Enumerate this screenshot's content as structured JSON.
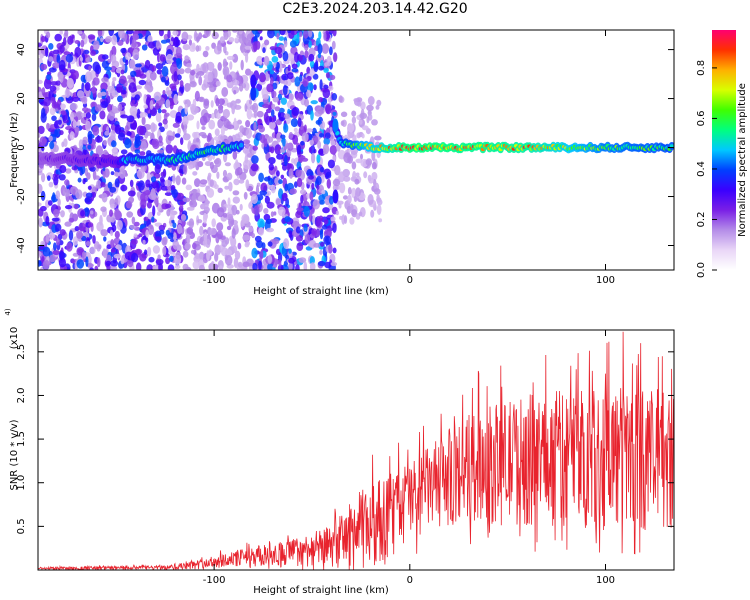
{
  "title": "C2E3.2024.203.14.42.G20",
  "charts": [
    {
      "type": "heatmap",
      "xlabel": "Height of straight line (km)",
      "ylabel": "Frequency (Hz)",
      "xlim": [
        -190,
        135
      ],
      "ylim": [
        -50,
        48
      ],
      "xticks": [
        -100,
        0,
        100
      ],
      "xtick_labels": [
        "-100",
        "0",
        "100"
      ],
      "yticks": [
        -40,
        -20,
        0,
        20,
        40
      ],
      "ytick_labels": [
        "-40",
        "-20",
        "0",
        "20",
        "40"
      ],
      "colorbar": {
        "label": "Normalized spectral amplitude",
        "range": [
          0,
          0.95
        ],
        "ticks": [
          0.0,
          0.2,
          0.4,
          0.6,
          0.8
        ],
        "tick_labels": [
          "0.0",
          "0.2",
          "0.4",
          "0.6",
          "0.8"
        ],
        "colors": [
          "#ffffff",
          "#e9d6f7",
          "#b48ce8",
          "#7a1fe6",
          "#3a00ff",
          "#0040ff",
          "#00c8ff",
          "#00ff80",
          "#40ff00",
          "#d8ff00",
          "#ffb000",
          "#ff3000",
          "#ff0070"
        ]
      },
      "noise_regions": [
        {
          "x": [
            -190,
            -115
          ],
          "y": [
            -50,
            48
          ],
          "level": 0.22
        },
        {
          "x": [
            -115,
            -80
          ],
          "y": [
            -50,
            48
          ],
          "level": 0.08
        },
        {
          "x": [
            -80,
            -38
          ],
          "y": [
            -50,
            48
          ],
          "level": 0.26
        },
        {
          "x": [
            -38,
            -15
          ],
          "y": [
            -30,
            20
          ],
          "level": 0.06
        }
      ],
      "ridge": [
        {
          "x": -190,
          "y": -4,
          "amp": 0.15,
          "width": 6
        },
        {
          "x": -150,
          "y": -6,
          "amp": 0.25,
          "width": 6
        },
        {
          "x": -145,
          "y": -5,
          "amp": 0.45,
          "width": 5
        },
        {
          "x": -120,
          "y": -5,
          "amp": 0.5,
          "width": 5
        },
        {
          "x": -100,
          "y": -1,
          "amp": 0.55,
          "width": 5
        },
        {
          "x": -85,
          "y": 1,
          "amp": 0.45,
          "width": 5
        },
        {
          "x": -80,
          "y": 25,
          "amp": 0.3,
          "width": 8
        },
        {
          "x": -38,
          "y": 8,
          "amp": 0.4,
          "width": 6
        },
        {
          "x": -35,
          "y": 2,
          "amp": 0.5,
          "width": 4
        },
        {
          "x": -20,
          "y": 0,
          "amp": 0.7,
          "width": 4
        },
        {
          "x": 0,
          "y": 0,
          "amp": 0.85,
          "width": 4
        },
        {
          "x": 60,
          "y": 0,
          "amp": 0.8,
          "width": 4
        },
        {
          "x": 100,
          "y": 0,
          "amp": 0.6,
          "width": 4
        },
        {
          "x": 135,
          "y": 0,
          "amp": 0.55,
          "width": 4
        }
      ]
    },
    {
      "type": "line",
      "xlabel": "Height of straight line (km)",
      "ylabel": "SNR (10 * v/v)",
      "multiplier": "(x10",
      "multiplier_exp": "4",
      "xlim": [
        -190,
        135
      ],
      "ylim": [
        0,
        2.75
      ],
      "xticks": [
        -100,
        0,
        100
      ],
      "xtick_labels": [
        "-100",
        "0",
        "100"
      ],
      "yticks": [
        0.5,
        1.0,
        1.5,
        2.0,
        2.5
      ],
      "ytick_labels": [
        "0.5",
        "1.0",
        "1.5",
        "2.0",
        "2.5"
      ],
      "color": "#e8232d",
      "envelope": [
        {
          "x": -190,
          "base": 0.02,
          "amp": 0.02
        },
        {
          "x": -125,
          "base": 0.03,
          "amp": 0.03
        },
        {
          "x": -110,
          "base": 0.06,
          "amp": 0.06
        },
        {
          "x": -90,
          "base": 0.14,
          "amp": 0.12
        },
        {
          "x": -60,
          "base": 0.22,
          "amp": 0.2
        },
        {
          "x": -40,
          "base": 0.3,
          "amp": 0.3
        },
        {
          "x": -25,
          "base": 0.5,
          "amp": 0.6
        },
        {
          "x": -10,
          "base": 0.7,
          "amp": 0.6
        },
        {
          "x": 10,
          "base": 1.0,
          "amp": 0.6
        },
        {
          "x": 30,
          "base": 1.25,
          "amp": 0.8
        },
        {
          "x": 60,
          "base": 1.35,
          "amp": 0.95
        },
        {
          "x": 100,
          "base": 1.4,
          "amp": 1.05
        },
        {
          "x": 135,
          "base": 1.35,
          "amp": 1.0
        }
      ],
      "peaks": [
        {
          "x": -19,
          "y": 1.32
        },
        {
          "x": -1,
          "y": 1.38
        },
        {
          "x": 35,
          "y": 2.28
        },
        {
          "x": 85,
          "y": 2.3
        },
        {
          "x": 100,
          "y": 2.25
        },
        {
          "x": 109,
          "y": 2.73
        },
        {
          "x": 118,
          "y": 2.6
        },
        {
          "x": 129,
          "y": 2.45
        },
        {
          "x": 47,
          "y": 2.1
        },
        {
          "x": 63,
          "y": 2.15
        },
        {
          "x": 75,
          "y": 2.05
        },
        {
          "x": 97,
          "y": 0.2
        }
      ]
    }
  ]
}
